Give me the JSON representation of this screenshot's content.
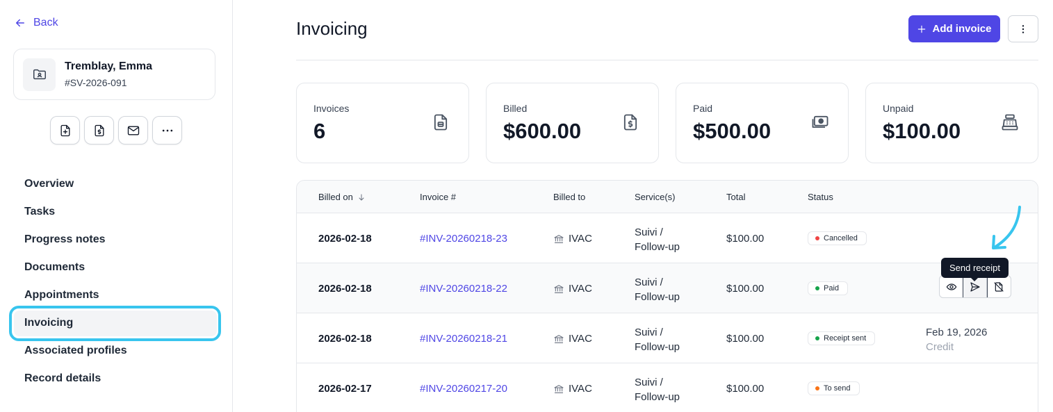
{
  "sidebar": {
    "back_label": "Back",
    "profile": {
      "name": "Tremblay, Emma",
      "id": "#SV-2026-091"
    },
    "nav": [
      {
        "label": "Overview"
      },
      {
        "label": "Tasks"
      },
      {
        "label": "Progress notes"
      },
      {
        "label": "Documents"
      },
      {
        "label": "Appointments"
      },
      {
        "label": "Invoicing",
        "active": true
      },
      {
        "label": "Associated profiles"
      },
      {
        "label": "Record details"
      }
    ]
  },
  "header": {
    "title": "Invoicing",
    "add_label": "Add invoice"
  },
  "stats": [
    {
      "label": "Invoices",
      "value": "6",
      "icon": "document-icon"
    },
    {
      "label": "Billed",
      "value": "$600.00",
      "icon": "invoice-dollar-icon"
    },
    {
      "label": "Paid",
      "value": "$500.00",
      "icon": "cash-icon"
    },
    {
      "label": "Unpaid",
      "value": "$100.00",
      "icon": "cash-register-icon"
    }
  ],
  "table": {
    "columns": [
      "Billed on",
      "Invoice #",
      "Billed to",
      "Service(s)",
      "Total",
      "Status"
    ],
    "rows": [
      {
        "date": "2026-02-18",
        "invoice": "#INV-20260218-23",
        "billed_to": "IVAC",
        "service_line1": "Suivi /",
        "service_line2": "Follow-up",
        "total": "$100.00",
        "status": "Cancelled",
        "status_color": "#ef4444"
      },
      {
        "date": "2026-02-18",
        "invoice": "#INV-20260218-22",
        "billed_to": "IVAC",
        "service_line1": "Suivi /",
        "service_line2": "Follow-up",
        "total": "$100.00",
        "status": "Paid",
        "status_color": "#16a34a"
      },
      {
        "date": "2026-02-18",
        "invoice": "#INV-20260218-21",
        "billed_to": "IVAC",
        "service_line1": "Suivi /",
        "service_line2": "Follow-up",
        "total": "$100.00",
        "status": "Receipt sent",
        "status_color": "#16a34a",
        "extra_date": "Feb 19, 2026",
        "extra_note": "Credit"
      },
      {
        "date": "2026-02-17",
        "invoice": "#INV-20260217-20",
        "billed_to": "IVAC",
        "service_line1": "Suivi /",
        "service_line2": "Follow-up",
        "total": "$100.00",
        "status": "To send",
        "status_color": "#f97316"
      }
    ]
  },
  "tooltip": "Send receipt",
  "colors": {
    "accent": "#4f46e5",
    "highlight_ring": "#38c5ee"
  }
}
